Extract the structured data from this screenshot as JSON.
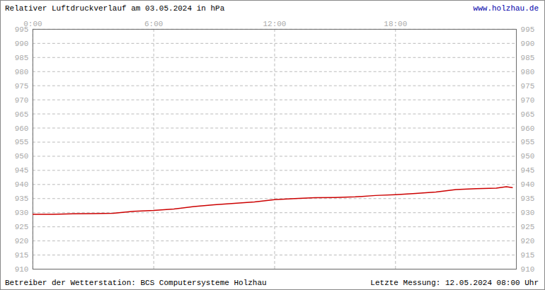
{
  "chart_data": {
    "type": "line",
    "title": "Relativer Luftdruckverlauf am 03.05.2024 in hPa",
    "source_url": "www.holzhau.de",
    "caption": "Betreiber der Wetterstation: BCS Computersysteme Holzhau",
    "note": "Letzte Messung: 12.05.2024 08:00 Uhr",
    "x": [
      0,
      1,
      2,
      3,
      4,
      5,
      6,
      7,
      8,
      9,
      10,
      11,
      12,
      13,
      14,
      15,
      16,
      17,
      18,
      19,
      20,
      21,
      22,
      23,
      23.5,
      23.8
    ],
    "series": [
      {
        "color": "#cc0000",
        "values": [
          929.4,
          929.4,
          929.6,
          929.7,
          929.8,
          930.5,
          930.8,
          931.3,
          932.2,
          932.8,
          933.3,
          933.8,
          934.6,
          935.0,
          935.3,
          935.4,
          935.6,
          936.1,
          936.4,
          936.8,
          937.3,
          938.2,
          938.5,
          938.7,
          939.2,
          938.9
        ]
      }
    ],
    "xlim": [
      0,
      24
    ],
    "xticks": [
      {
        "value": 0,
        "label": "0:00"
      },
      {
        "value": 6,
        "label": "6:00"
      },
      {
        "value": 12,
        "label": "12:00"
      },
      {
        "value": 18,
        "label": "18:00"
      }
    ],
    "ylim": [
      910,
      995
    ],
    "yticks": [
      910,
      915,
      920,
      925,
      930,
      935,
      940,
      945,
      950,
      955,
      960,
      965,
      970,
      975,
      980,
      985,
      990,
      995
    ],
    "grid": true,
    "line_style": "solid"
  }
}
